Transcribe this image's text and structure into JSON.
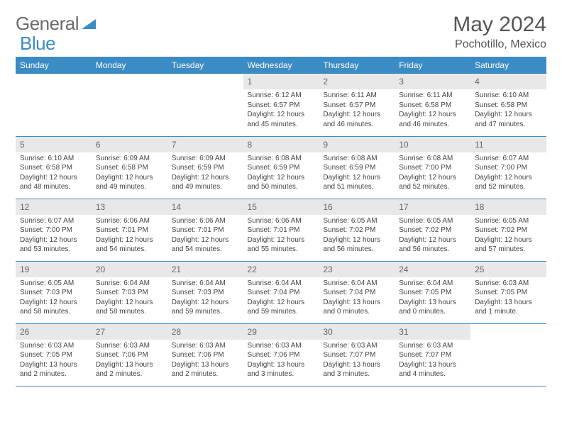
{
  "logo": {
    "text1": "General",
    "text2": "Blue"
  },
  "title": "May 2024",
  "location": "Pochotillo, Mexico",
  "colors": {
    "header_bg": "#3b8bc4",
    "header_text": "#ffffff",
    "daynum_bg": "#e8e8e8",
    "border": "#3b8bc4",
    "logo_gray": "#6b6b6b",
    "logo_blue": "#3b8bc4"
  },
  "weekdays": [
    "Sunday",
    "Monday",
    "Tuesday",
    "Wednesday",
    "Thursday",
    "Friday",
    "Saturday"
  ],
  "weeks": [
    [
      null,
      null,
      null,
      {
        "d": "1",
        "sr": "6:12 AM",
        "ss": "6:57 PM",
        "dl": "12 hours and 45 minutes."
      },
      {
        "d": "2",
        "sr": "6:11 AM",
        "ss": "6:57 PM",
        "dl": "12 hours and 46 minutes."
      },
      {
        "d": "3",
        "sr": "6:11 AM",
        "ss": "6:58 PM",
        "dl": "12 hours and 46 minutes."
      },
      {
        "d": "4",
        "sr": "6:10 AM",
        "ss": "6:58 PM",
        "dl": "12 hours and 47 minutes."
      }
    ],
    [
      {
        "d": "5",
        "sr": "6:10 AM",
        "ss": "6:58 PM",
        "dl": "12 hours and 48 minutes."
      },
      {
        "d": "6",
        "sr": "6:09 AM",
        "ss": "6:58 PM",
        "dl": "12 hours and 49 minutes."
      },
      {
        "d": "7",
        "sr": "6:09 AM",
        "ss": "6:59 PM",
        "dl": "12 hours and 49 minutes."
      },
      {
        "d": "8",
        "sr": "6:08 AM",
        "ss": "6:59 PM",
        "dl": "12 hours and 50 minutes."
      },
      {
        "d": "9",
        "sr": "6:08 AM",
        "ss": "6:59 PM",
        "dl": "12 hours and 51 minutes."
      },
      {
        "d": "10",
        "sr": "6:08 AM",
        "ss": "7:00 PM",
        "dl": "12 hours and 52 minutes."
      },
      {
        "d": "11",
        "sr": "6:07 AM",
        "ss": "7:00 PM",
        "dl": "12 hours and 52 minutes."
      }
    ],
    [
      {
        "d": "12",
        "sr": "6:07 AM",
        "ss": "7:00 PM",
        "dl": "12 hours and 53 minutes."
      },
      {
        "d": "13",
        "sr": "6:06 AM",
        "ss": "7:01 PM",
        "dl": "12 hours and 54 minutes."
      },
      {
        "d": "14",
        "sr": "6:06 AM",
        "ss": "7:01 PM",
        "dl": "12 hours and 54 minutes."
      },
      {
        "d": "15",
        "sr": "6:06 AM",
        "ss": "7:01 PM",
        "dl": "12 hours and 55 minutes."
      },
      {
        "d": "16",
        "sr": "6:05 AM",
        "ss": "7:02 PM",
        "dl": "12 hours and 56 minutes."
      },
      {
        "d": "17",
        "sr": "6:05 AM",
        "ss": "7:02 PM",
        "dl": "12 hours and 56 minutes."
      },
      {
        "d": "18",
        "sr": "6:05 AM",
        "ss": "7:02 PM",
        "dl": "12 hours and 57 minutes."
      }
    ],
    [
      {
        "d": "19",
        "sr": "6:05 AM",
        "ss": "7:03 PM",
        "dl": "12 hours and 58 minutes."
      },
      {
        "d": "20",
        "sr": "6:04 AM",
        "ss": "7:03 PM",
        "dl": "12 hours and 58 minutes."
      },
      {
        "d": "21",
        "sr": "6:04 AM",
        "ss": "7:03 PM",
        "dl": "12 hours and 59 minutes."
      },
      {
        "d": "22",
        "sr": "6:04 AM",
        "ss": "7:04 PM",
        "dl": "12 hours and 59 minutes."
      },
      {
        "d": "23",
        "sr": "6:04 AM",
        "ss": "7:04 PM",
        "dl": "13 hours and 0 minutes."
      },
      {
        "d": "24",
        "sr": "6:04 AM",
        "ss": "7:05 PM",
        "dl": "13 hours and 0 minutes."
      },
      {
        "d": "25",
        "sr": "6:03 AM",
        "ss": "7:05 PM",
        "dl": "13 hours and 1 minute."
      }
    ],
    [
      {
        "d": "26",
        "sr": "6:03 AM",
        "ss": "7:05 PM",
        "dl": "13 hours and 2 minutes."
      },
      {
        "d": "27",
        "sr": "6:03 AM",
        "ss": "7:06 PM",
        "dl": "13 hours and 2 minutes."
      },
      {
        "d": "28",
        "sr": "6:03 AM",
        "ss": "7:06 PM",
        "dl": "13 hours and 2 minutes."
      },
      {
        "d": "29",
        "sr": "6:03 AM",
        "ss": "7:06 PM",
        "dl": "13 hours and 3 minutes."
      },
      {
        "d": "30",
        "sr": "6:03 AM",
        "ss": "7:07 PM",
        "dl": "13 hours and 3 minutes."
      },
      {
        "d": "31",
        "sr": "6:03 AM",
        "ss": "7:07 PM",
        "dl": "13 hours and 4 minutes."
      },
      null
    ]
  ],
  "labels": {
    "sunrise": "Sunrise:",
    "sunset": "Sunset:",
    "daylight": "Daylight:"
  }
}
